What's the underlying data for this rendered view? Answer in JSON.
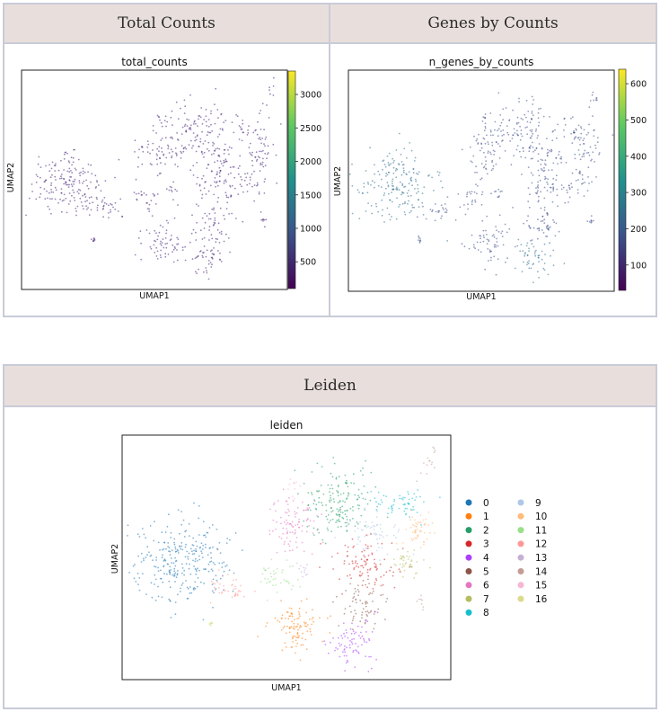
{
  "panels": {
    "total_counts": {
      "header": "Total Counts"
    },
    "genes_by_counts": {
      "header": "Genes by Counts"
    },
    "leiden": {
      "header": "Leiden"
    }
  },
  "chart_data": [
    {
      "type": "scatter",
      "title": "total_counts",
      "xlabel": "UMAP1",
      "ylabel": "UMAP2",
      "colorbar": {
        "cmap": "viridis",
        "min": 100,
        "max": 3350,
        "ticks": [
          500,
          1000,
          1500,
          2000,
          2500,
          3000
        ]
      },
      "point_color_hex": "#46237a",
      "grid": false
    },
    {
      "type": "scatter",
      "title": "n_genes_by_counts",
      "xlabel": "UMAP1",
      "ylabel": "UMAP2",
      "colorbar": {
        "cmap": "viridis",
        "min": 30,
        "max": 640,
        "ticks": [
          100,
          200,
          300,
          400,
          500,
          600
        ]
      },
      "point_color_hex": "#3d4f8a",
      "grid": false
    },
    {
      "type": "scatter",
      "title": "leiden",
      "xlabel": "UMAP1",
      "ylabel": "UMAP2",
      "grid": false,
      "legend_placement": "right",
      "clusters": [
        {
          "name": "0",
          "color": "#1f77b4"
        },
        {
          "name": "1",
          "color": "#ff7f0e"
        },
        {
          "name": "2",
          "color": "#279e68"
        },
        {
          "name": "3",
          "color": "#d62728"
        },
        {
          "name": "4",
          "color": "#aa40fc"
        },
        {
          "name": "5",
          "color": "#8c564b"
        },
        {
          "name": "6",
          "color": "#e377c2"
        },
        {
          "name": "7",
          "color": "#b5bd61"
        },
        {
          "name": "8",
          "color": "#17becf"
        },
        {
          "name": "9",
          "color": "#aec7e8"
        },
        {
          "name": "10",
          "color": "#ffbb78"
        },
        {
          "name": "11",
          "color": "#98df8a"
        },
        {
          "name": "12",
          "color": "#ff9896"
        },
        {
          "name": "13",
          "color": "#c5b0d5"
        },
        {
          "name": "14",
          "color": "#c49c94"
        },
        {
          "name": "15",
          "color": "#f7b6d2"
        },
        {
          "name": "16",
          "color": "#dbdb8d"
        }
      ]
    }
  ]
}
